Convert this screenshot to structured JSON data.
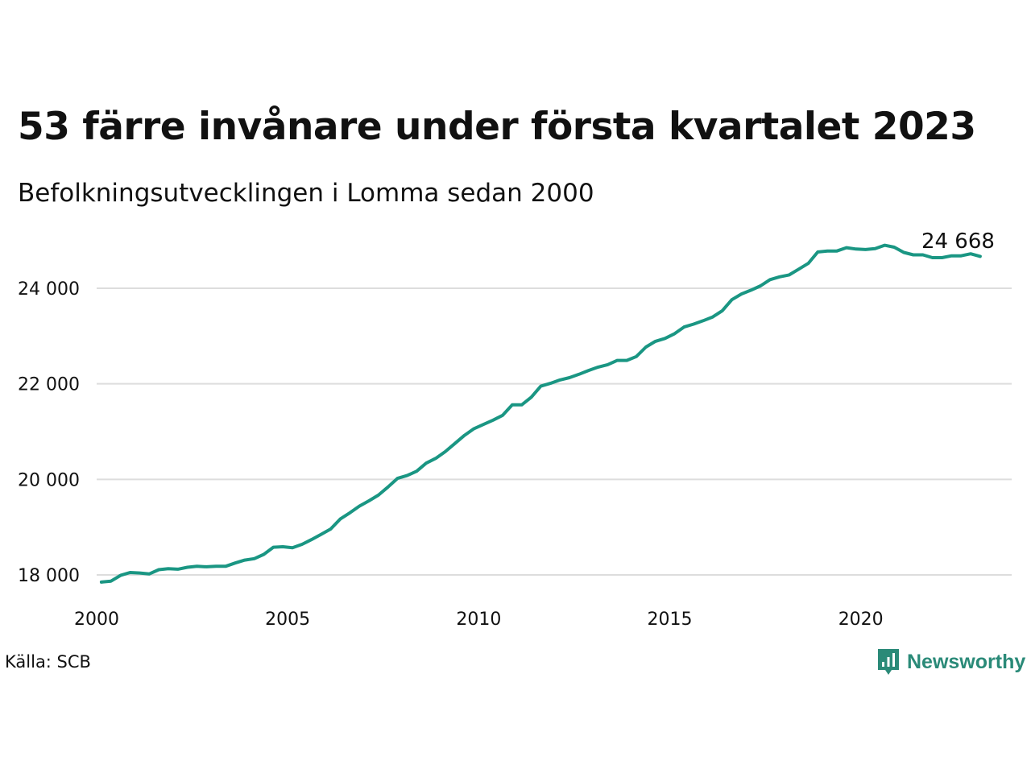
{
  "header": {
    "title": "53 färre invånare under första kvartalet 2023",
    "subtitle": "Befolkningsutvecklingen i Lomma sedan 2000"
  },
  "footer": {
    "source": "Källa: SCB",
    "brand": "Newsworthy"
  },
  "colors": {
    "line": "#1a9683",
    "brand": "#2a8a78",
    "grid": "#dddddd",
    "text": "#111111"
  },
  "icons": {
    "brand_logo": "bar-chart-speech-bubble-icon"
  },
  "chart_data": {
    "type": "line",
    "title": "53 färre invånare under första kvartalet 2023",
    "subtitle": "Befolkningsutvecklingen i Lomma sedan 2000",
    "xlabel": "",
    "ylabel": "",
    "xlim": [
      2000,
      2024
    ],
    "ylim": [
      17800,
      25100
    ],
    "x_ticks": [
      2000,
      2005,
      2010,
      2015,
      2020
    ],
    "x_tick_labels": [
      "2000",
      "2005",
      "2010",
      "2015",
      "2020"
    ],
    "y_ticks": [
      18000,
      20000,
      22000,
      24000
    ],
    "y_tick_labels": [
      "18 000",
      "20 000",
      "22 000",
      "24 000"
    ],
    "grid": "horizontal",
    "end_label": "24 668",
    "series": [
      {
        "x": [
          2000.125,
          2000.375,
          2000.625,
          2000.875,
          2001.125,
          2001.375,
          2001.625,
          2001.875,
          2002.125,
          2002.375,
          2002.625,
          2002.875,
          2003.125,
          2003.375,
          2003.625,
          2003.875,
          2004.125,
          2004.375,
          2004.625,
          2004.875,
          2005.125,
          2005.375,
          2005.625,
          2005.875,
          2006.125,
          2006.375,
          2006.625,
          2006.875,
          2007.125,
          2007.375,
          2007.625,
          2007.875,
          2008.125,
          2008.375,
          2008.625,
          2008.875,
          2009.125,
          2009.375,
          2009.625,
          2009.875,
          2010.125,
          2010.375,
          2010.625,
          2010.875,
          2011.125,
          2011.375,
          2011.625,
          2011.875,
          2012.125,
          2012.375,
          2012.625,
          2012.875,
          2013.125,
          2013.375,
          2013.625,
          2013.875,
          2014.125,
          2014.375,
          2014.625,
          2014.875,
          2015.125,
          2015.375,
          2015.625,
          2015.875,
          2016.125,
          2016.375,
          2016.625,
          2016.875,
          2017.125,
          2017.375,
          2017.625,
          2017.875,
          2018.125,
          2018.375,
          2018.625,
          2018.875,
          2019.125,
          2019.375,
          2019.625,
          2019.875,
          2020.125,
          2020.375,
          2020.625,
          2020.875,
          2021.125,
          2021.375,
          2021.625,
          2021.875,
          2022.125,
          2022.375,
          2022.625,
          2022.875,
          2023.125
        ],
        "values": [
          17850,
          17870,
          17990,
          18050,
          18040,
          18020,
          18110,
          18130,
          18120,
          18160,
          18180,
          18170,
          18180,
          18180,
          18250,
          18310,
          18340,
          18430,
          18580,
          18590,
          18570,
          18640,
          18740,
          18850,
          18960,
          19170,
          19300,
          19440,
          19550,
          19670,
          19840,
          20020,
          20080,
          20170,
          20340,
          20440,
          20580,
          20750,
          20920,
          21060,
          21150,
          21240,
          21340,
          21560,
          21560,
          21720,
          21950,
          22010,
          22080,
          22130,
          22200,
          22280,
          22350,
          22400,
          22490,
          22490,
          22570,
          22770,
          22890,
          22950,
          23050,
          23190,
          23250,
          23320,
          23400,
          23530,
          23760,
          23880,
          23960,
          24050,
          24180,
          24240,
          24280,
          24400,
          24520,
          24760,
          24780,
          24780,
          24850,
          24820,
          24810,
          24830,
          24900,
          24860,
          24750,
          24700,
          24700,
          24640,
          24640,
          24680,
          24680,
          24721,
          24668
        ]
      }
    ]
  }
}
